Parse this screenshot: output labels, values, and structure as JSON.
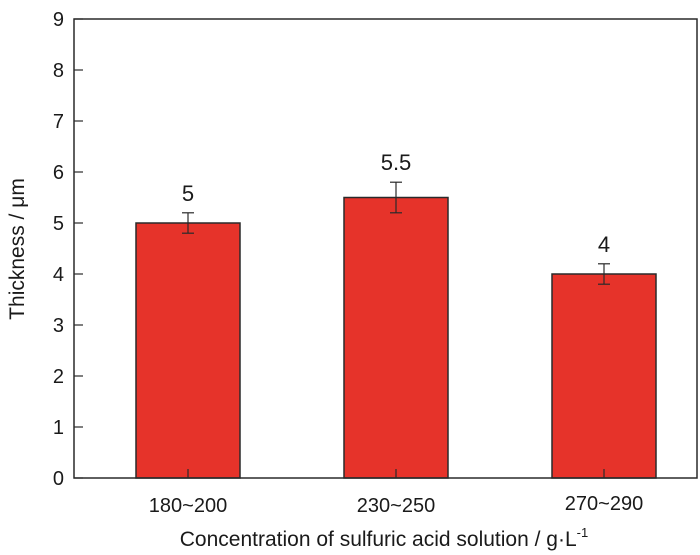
{
  "chart_data": {
    "type": "bar",
    "title": "",
    "xlabel": "Concentration of sulfuric acid solution / g·L",
    "xlabel_superscript": "-1",
    "ylabel": "Thickness / μm",
    "ylim": [
      0,
      9
    ],
    "yticks": [
      0,
      1,
      2,
      3,
      4,
      5,
      6,
      7,
      8,
      9
    ],
    "categories": [
      "180~200",
      "230~250",
      "270~290"
    ],
    "values": [
      5,
      5.5,
      4
    ],
    "errors": [
      0.2,
      0.3,
      0.2
    ],
    "data_labels": [
      "5",
      "5.5",
      "4"
    ],
    "grid": false,
    "legend": null,
    "bar_color": "#e6332a"
  }
}
